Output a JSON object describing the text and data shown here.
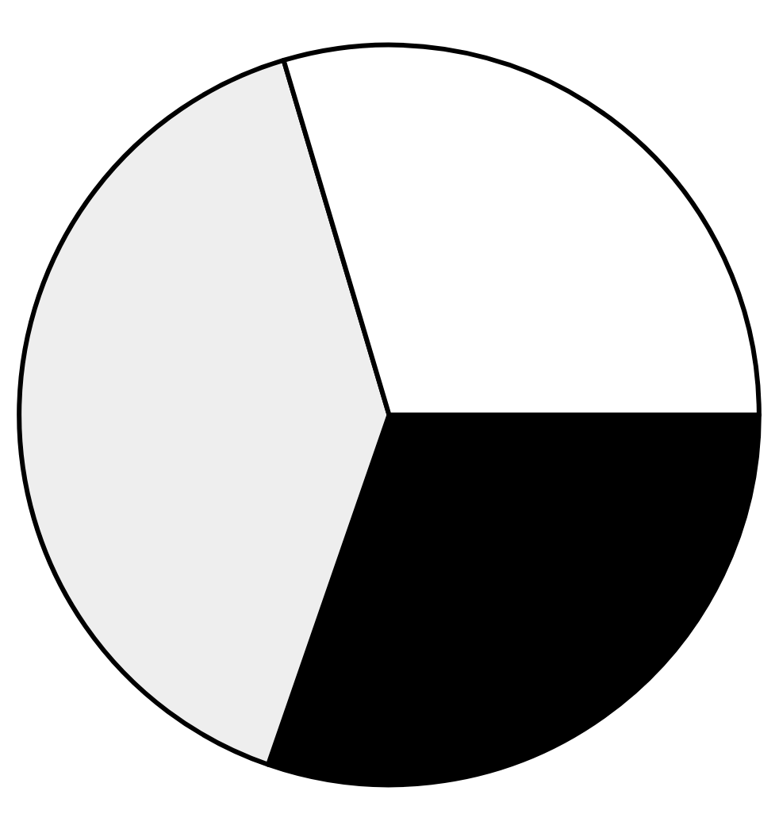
{
  "chart_data": {
    "type": "pie",
    "categories": [
      null,
      null,
      null
    ],
    "values": [
      30.3,
      40.1,
      29.6
    ],
    "colors": [
      "#000000",
      "#eeeeee",
      "#ffffff"
    ]
  }
}
